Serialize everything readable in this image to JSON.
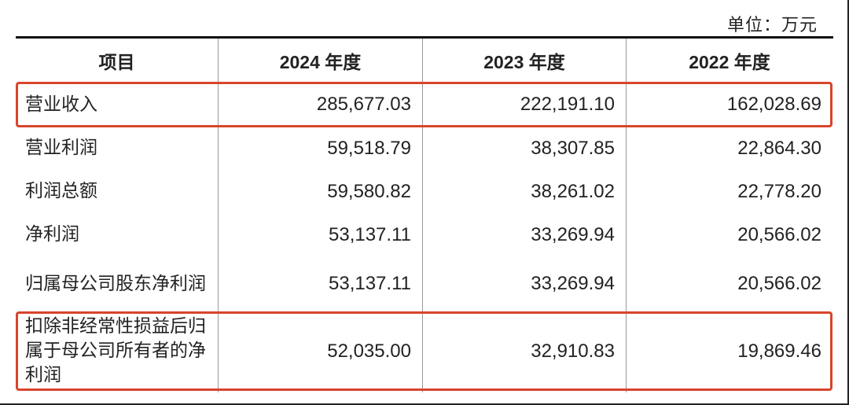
{
  "unit_label": "单位：万元",
  "headers": [
    "项目",
    "2024 年度",
    "2023 年度",
    "2022 年度"
  ],
  "rows": [
    {
      "item": "营业收入",
      "values": [
        "285,677.03",
        "222,191.10",
        "162,028.69"
      ],
      "highlighted": true
    },
    {
      "item": "营业利润",
      "values": [
        "59,518.79",
        "38,307.85",
        "22,864.30"
      ],
      "highlighted": false
    },
    {
      "item": "利润总额",
      "values": [
        "59,580.82",
        "38,261.02",
        "22,778.20"
      ],
      "highlighted": false
    },
    {
      "item": "净利润",
      "values": [
        "53,137.11",
        "33,269.94",
        "20,566.02"
      ],
      "highlighted": false
    },
    {
      "item": "归属母公司股东净利润",
      "values": [
        "53,137.11",
        "33,269.94",
        "20,566.02"
      ],
      "highlighted": false
    },
    {
      "item": "扣除非经常性损益后归属于母公司所有者的净利润",
      "values": [
        "52,035.00",
        "32,910.83",
        "19,869.46"
      ],
      "highlighted": true
    }
  ],
  "highlight_color": "#d8452c"
}
